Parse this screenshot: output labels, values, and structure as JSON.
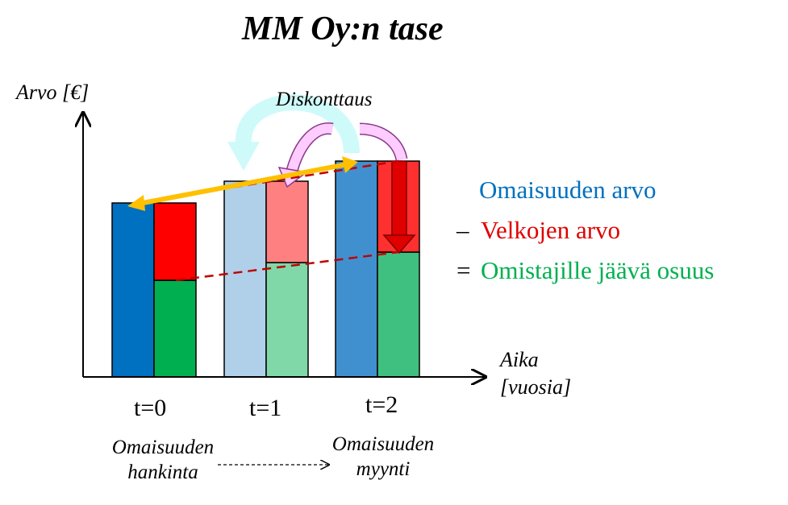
{
  "title": "MM Oy:n tase",
  "y_axis_label": "Arvo [€]",
  "x_axis_label_line1": "Aika",
  "x_axis_label_line2": "[vuosia]",
  "discount_label": "Diskonttaus",
  "colors": {
    "assets": "#0070c0",
    "liabilities": "#ff0000",
    "equity": "#00b050",
    "gold_arrow": "#ffc000",
    "dashed_line": "#c00000",
    "cyan_arrow": "#ccffff",
    "pink_arrow": "#ffccff"
  },
  "chart_data": {
    "type": "bar",
    "title": "MM Oy:n tase",
    "ylabel": "Arvo [€]",
    "xlabel": "Aika [vuosia]",
    "categories": [
      "t=0",
      "t=1",
      "t=2"
    ],
    "ylim": [
      0,
      300
    ],
    "series": [
      {
        "name": "Omaisuuden arvo",
        "values": [
          216,
          243,
          268
        ]
      },
      {
        "name": "Velkojen arvo",
        "values": [
          96,
          101,
          113
        ]
      },
      {
        "name": "Omistajille jäävä osuus",
        "values": [
          120,
          142,
          155
        ]
      }
    ]
  },
  "legend": {
    "assets": {
      "operator": "",
      "label": "Omaisuuden arvo"
    },
    "liabilities": {
      "operator": "–",
      "label": "Velkojen arvo"
    },
    "equity": {
      "operator": "=",
      "label": "Omistajille jäävä osuus"
    }
  },
  "notes": {
    "acquisition_line1": "Omaisuuden",
    "acquisition_line2": "hankinta",
    "sale_line1": "Omaisuuden",
    "sale_line2": "myynti"
  }
}
